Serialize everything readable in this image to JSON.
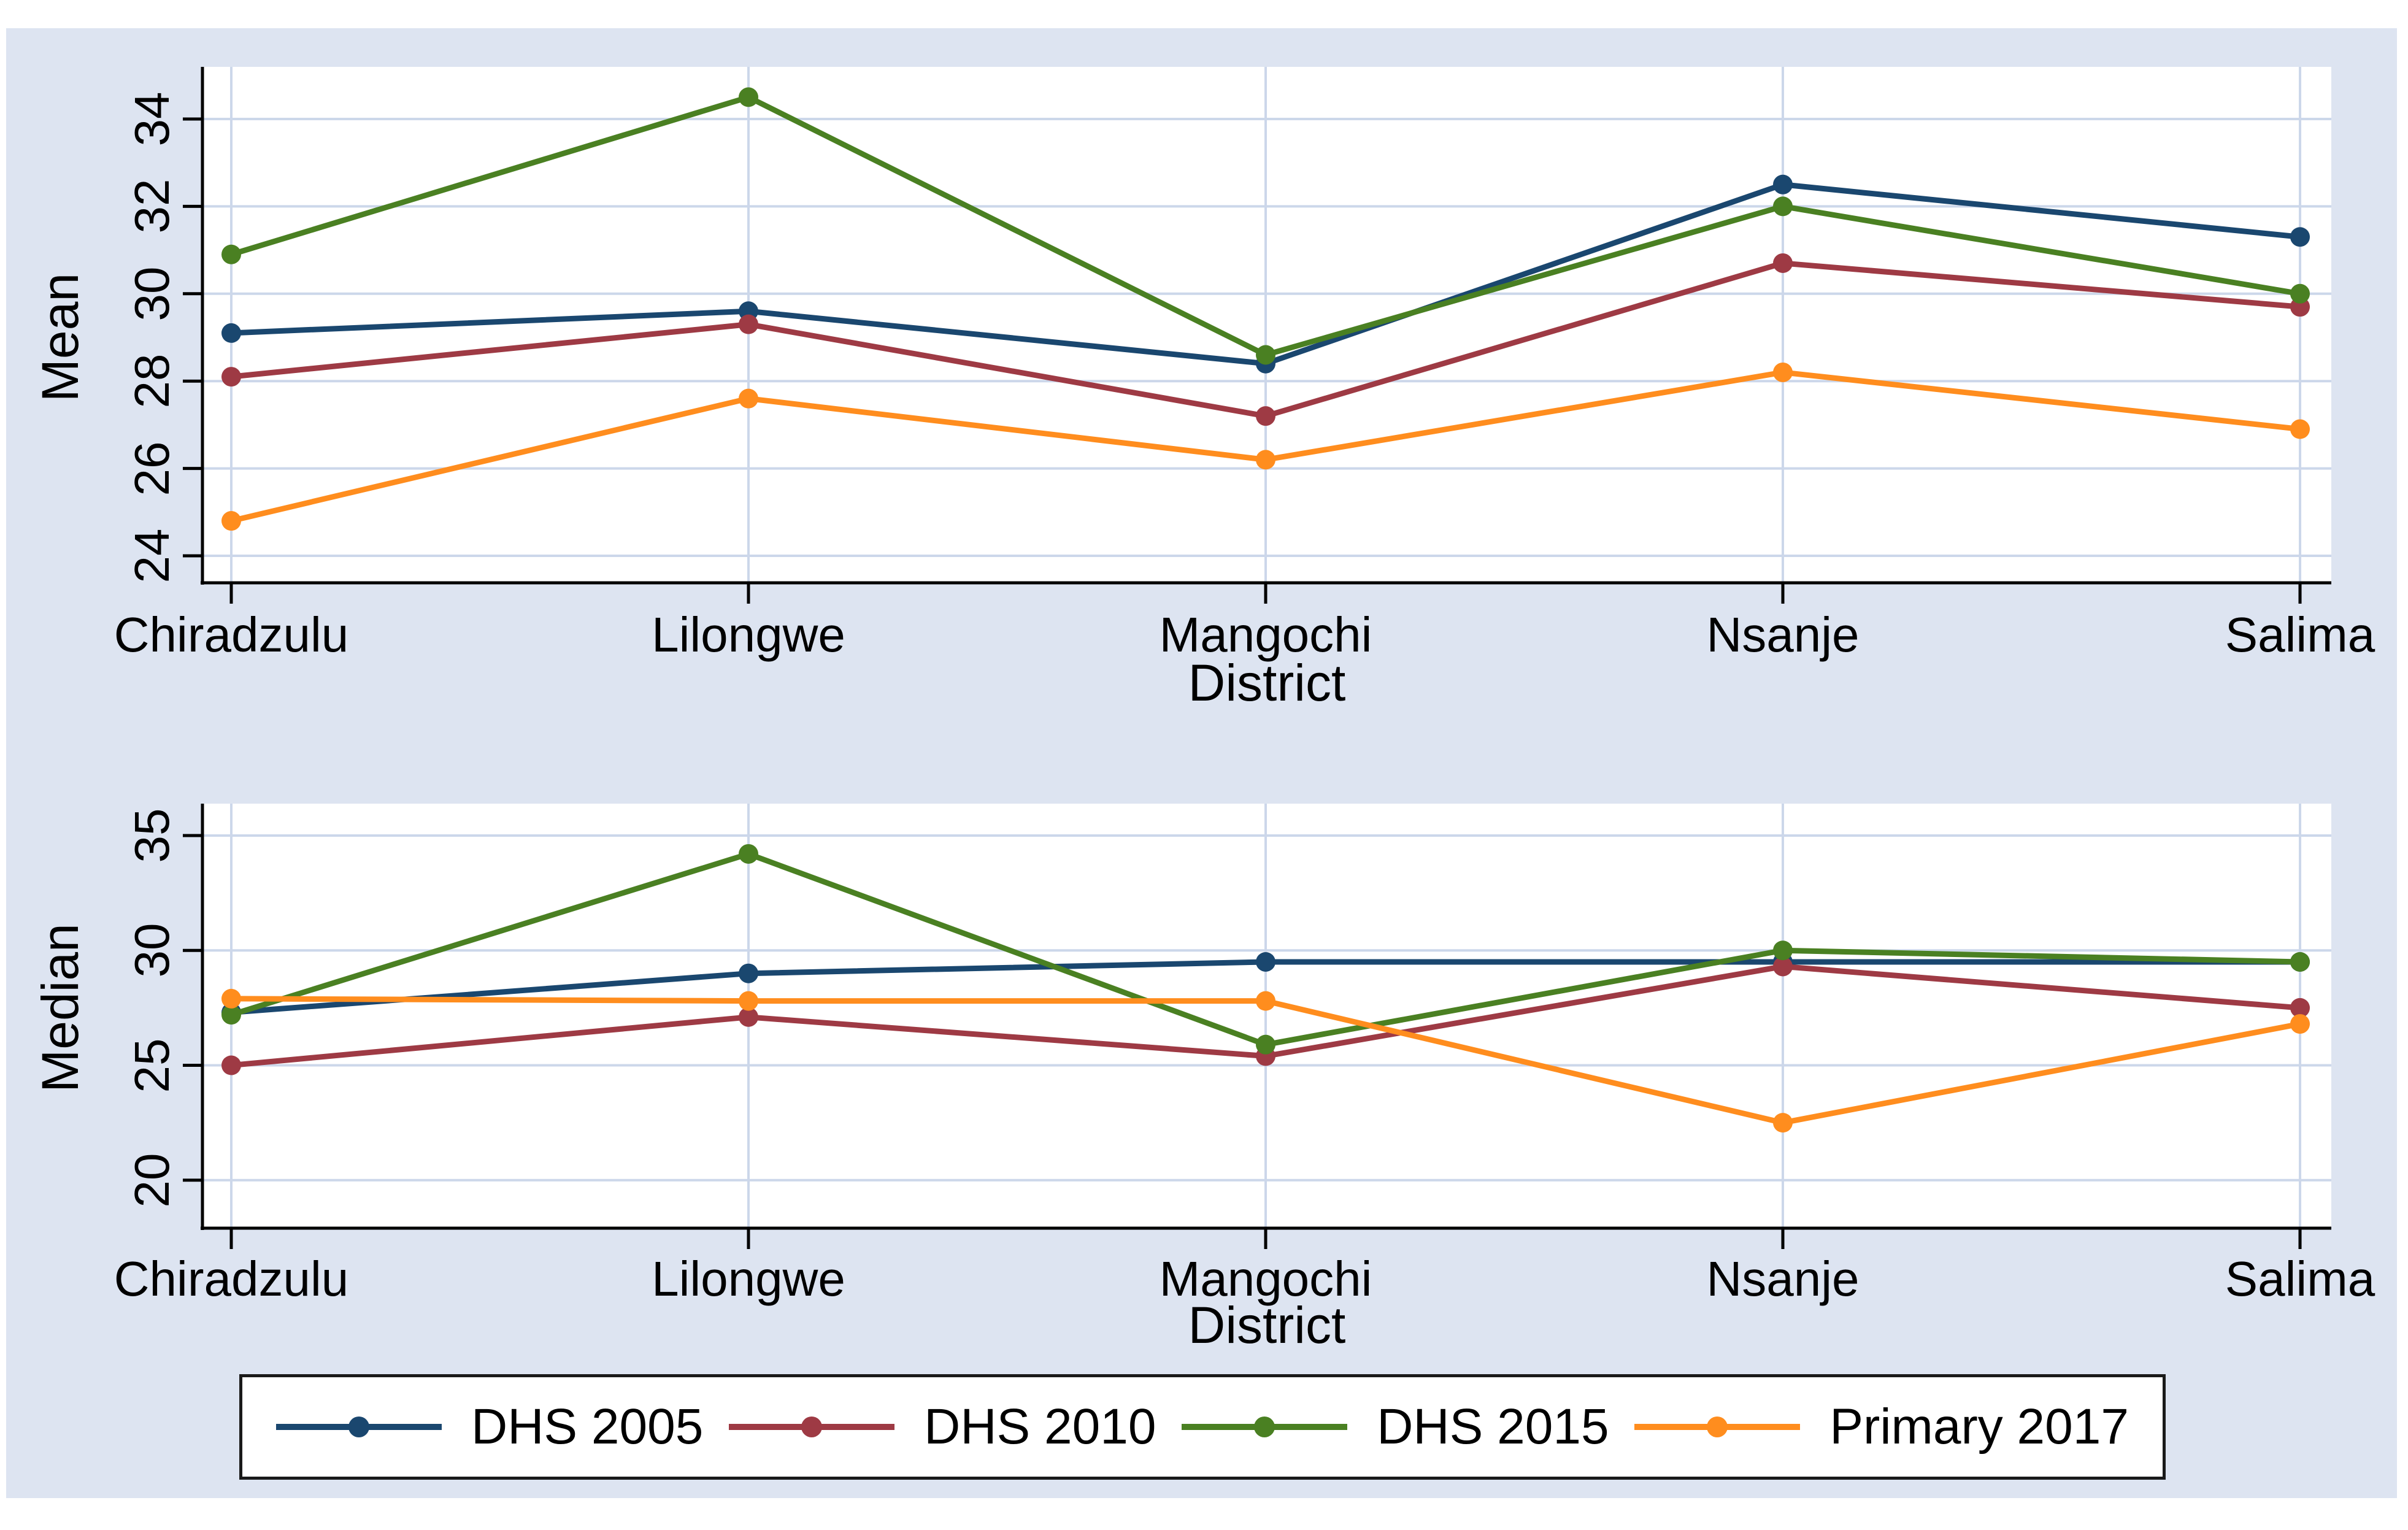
{
  "window": {
    "kind": "stata-graph",
    "title": ""
  },
  "colors": {
    "figure_background": "#dde4f1",
    "plot_background": "#ffffff",
    "gridline": "#ccd7ea",
    "axis": "#000000",
    "legend_border": "#1a1a1a",
    "navy": "#1a476f",
    "maroon": "#9e3a44",
    "green": "#4a8022",
    "orange": "#ff8d1e"
  },
  "chart_data": [
    {
      "type": "line",
      "title": "",
      "ylabel": "Mean",
      "xlabel": "District",
      "categories": [
        "Chiradzulu",
        "Lilongwe",
        "Mangochi",
        "Nsanje",
        "Salima"
      ],
      "yticks": [
        24,
        26,
        28,
        30,
        32,
        34
      ],
      "ylim": [
        23.4,
        35.2
      ],
      "grid": true,
      "legend_position": "bottom-shared",
      "series": [
        {
          "name": "DHS 2005",
          "color": "#1a476f",
          "values": [
            29.1,
            29.6,
            28.4,
            32.5,
            31.3
          ]
        },
        {
          "name": "DHS 2010",
          "color": "#9e3a44",
          "values": [
            28.1,
            29.3,
            27.2,
            30.7,
            29.7
          ]
        },
        {
          "name": "DHS 2015",
          "color": "#4a8022",
          "values": [
            30.9,
            34.5,
            28.6,
            32.0,
            30.0
          ]
        },
        {
          "name": "Primary 2017",
          "color": "#ff8d1e",
          "values": [
            24.8,
            27.6,
            26.2,
            28.2,
            26.9
          ]
        }
      ]
    },
    {
      "type": "line",
      "title": "",
      "ylabel": "Median",
      "xlabel": "District",
      "categories": [
        "Chiradzulu",
        "Lilongwe",
        "Mangochi",
        "Nsanje",
        "Salima"
      ],
      "yticks": [
        20,
        25,
        30,
        35
      ],
      "ylim": [
        18.0,
        36.4
      ],
      "grid": true,
      "legend_position": "bottom-shared",
      "series": [
        {
          "name": "DHS 2005",
          "color": "#1a476f",
          "values": [
            27.3,
            29.0,
            29.5,
            29.5,
            29.5
          ]
        },
        {
          "name": "DHS 2010",
          "color": "#9e3a44",
          "values": [
            25.0,
            27.1,
            25.4,
            29.3,
            27.5
          ]
        },
        {
          "name": "DHS 2015",
          "color": "#4a8022",
          "values": [
            27.2,
            34.2,
            25.9,
            30.0,
            29.5
          ]
        },
        {
          "name": "Primary 2017",
          "color": "#ff8d1e",
          "values": [
            27.9,
            27.8,
            27.8,
            22.5,
            26.8
          ]
        }
      ]
    }
  ]
}
